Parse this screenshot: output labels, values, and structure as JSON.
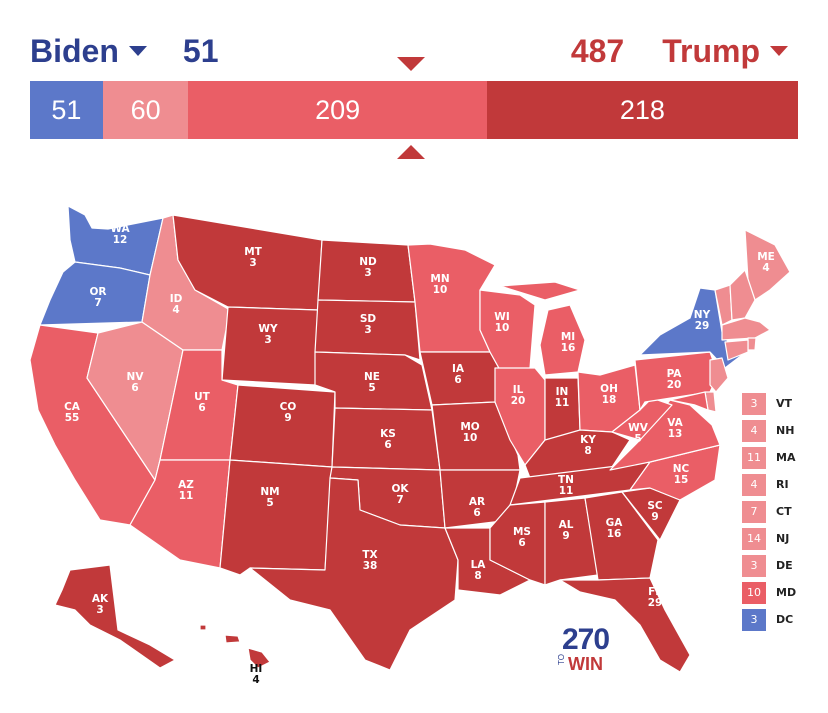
{
  "header": {
    "left_candidate": "Biden",
    "left_total": "51",
    "right_total": "487",
    "right_candidate": "Trump"
  },
  "bar": [
    {
      "label": "51",
      "value": 51,
      "color": "#5c78c9"
    },
    {
      "label": "60",
      "value": 60,
      "color": "#ef8d91"
    },
    {
      "label": "209",
      "value": 209,
      "color": "#ea5e66"
    },
    {
      "label": "218",
      "value": 218,
      "color": "#c1393a"
    }
  ],
  "colors": {
    "safe_dem": "#5c78c9",
    "lean_rep": "#ef8d91",
    "likely_rep": "#ea5e66",
    "safe_rep": "#c1393a"
  },
  "states": [
    {
      "abbr": "WA",
      "ev": "12",
      "rating": "safe_dem"
    },
    {
      "abbr": "OR",
      "ev": "7",
      "rating": "safe_dem"
    },
    {
      "abbr": "CA",
      "ev": "55",
      "rating": "likely_rep"
    },
    {
      "abbr": "NV",
      "ev": "6",
      "rating": "lean_rep"
    },
    {
      "abbr": "ID",
      "ev": "4",
      "rating": "lean_rep"
    },
    {
      "abbr": "MT",
      "ev": "3",
      "rating": "safe_rep"
    },
    {
      "abbr": "WY",
      "ev": "3",
      "rating": "safe_rep"
    },
    {
      "abbr": "UT",
      "ev": "6",
      "rating": "likely_rep"
    },
    {
      "abbr": "AZ",
      "ev": "11",
      "rating": "likely_rep"
    },
    {
      "abbr": "CO",
      "ev": "9",
      "rating": "safe_rep"
    },
    {
      "abbr": "NM",
      "ev": "5",
      "rating": "safe_rep"
    },
    {
      "abbr": "ND",
      "ev": "3",
      "rating": "safe_rep"
    },
    {
      "abbr": "SD",
      "ev": "3",
      "rating": "safe_rep"
    },
    {
      "abbr": "NE",
      "ev": "5",
      "rating": "safe_rep"
    },
    {
      "abbr": "KS",
      "ev": "6",
      "rating": "safe_rep"
    },
    {
      "abbr": "OK",
      "ev": "7",
      "rating": "safe_rep"
    },
    {
      "abbr": "TX",
      "ev": "38",
      "rating": "safe_rep"
    },
    {
      "abbr": "MN",
      "ev": "10",
      "rating": "likely_rep"
    },
    {
      "abbr": "IA",
      "ev": "6",
      "rating": "safe_rep"
    },
    {
      "abbr": "MO",
      "ev": "10",
      "rating": "safe_rep"
    },
    {
      "abbr": "AR",
      "ev": "6",
      "rating": "safe_rep"
    },
    {
      "abbr": "LA",
      "ev": "8",
      "rating": "safe_rep"
    },
    {
      "abbr": "WI",
      "ev": "10",
      "rating": "likely_rep"
    },
    {
      "abbr": "IL",
      "ev": "20",
      "rating": "likely_rep"
    },
    {
      "abbr": "MI",
      "ev": "16",
      "rating": "likely_rep"
    },
    {
      "abbr": "IN",
      "ev": "11",
      "rating": "safe_rep"
    },
    {
      "abbr": "OH",
      "ev": "18",
      "rating": "likely_rep"
    },
    {
      "abbr": "KY",
      "ev": "8",
      "rating": "safe_rep"
    },
    {
      "abbr": "TN",
      "ev": "11",
      "rating": "safe_rep"
    },
    {
      "abbr": "MS",
      "ev": "6",
      "rating": "safe_rep"
    },
    {
      "abbr": "AL",
      "ev": "9",
      "rating": "safe_rep"
    },
    {
      "abbr": "GA",
      "ev": "16",
      "rating": "safe_rep"
    },
    {
      "abbr": "FL",
      "ev": "29",
      "rating": "safe_rep"
    },
    {
      "abbr": "SC",
      "ev": "9",
      "rating": "safe_rep"
    },
    {
      "abbr": "NC",
      "ev": "15",
      "rating": "likely_rep"
    },
    {
      "abbr": "VA",
      "ev": "13",
      "rating": "likely_rep"
    },
    {
      "abbr": "WV",
      "ev": "5",
      "rating": "likely_rep"
    },
    {
      "abbr": "PA",
      "ev": "20",
      "rating": "likely_rep"
    },
    {
      "abbr": "NY",
      "ev": "29",
      "rating": "safe_dem"
    },
    {
      "abbr": "ME",
      "ev": "4",
      "rating": "lean_rep"
    },
    {
      "abbr": "AK",
      "ev": "3",
      "rating": "safe_rep"
    },
    {
      "abbr": "HI",
      "ev": "4",
      "rating": "safe_rep"
    }
  ],
  "legend": [
    {
      "ev": "3",
      "abbr": "VT",
      "color": "#ef8d91"
    },
    {
      "ev": "4",
      "abbr": "NH",
      "color": "#ef8d91"
    },
    {
      "ev": "11",
      "abbr": "MA",
      "color": "#ef8d91"
    },
    {
      "ev": "4",
      "abbr": "RI",
      "color": "#ef8d91"
    },
    {
      "ev": "7",
      "abbr": "CT",
      "color": "#ef8d91"
    },
    {
      "ev": "14",
      "abbr": "NJ",
      "color": "#ef8d91"
    },
    {
      "ev": "3",
      "abbr": "DE",
      "color": "#ef8d91"
    },
    {
      "ev": "10",
      "abbr": "MD",
      "color": "#ea5e66"
    },
    {
      "ev": "3",
      "abbr": "DC",
      "color": "#5c78c9"
    }
  ],
  "logo": {
    "number": "270",
    "to": "TO",
    "win": "WIN"
  }
}
